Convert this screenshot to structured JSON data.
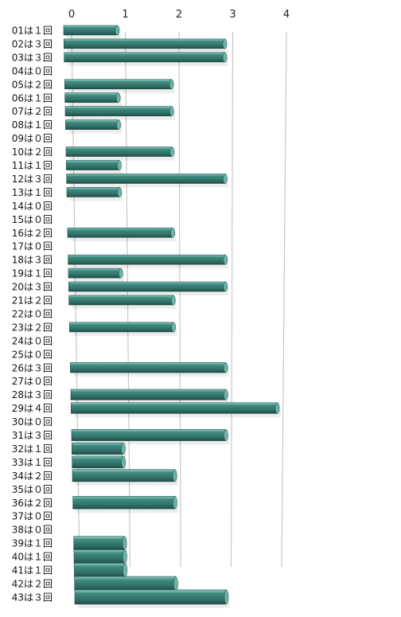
{
  "chart_data": {
    "type": "bar",
    "orientation": "horizontal",
    "x_ticks": [
      "0",
      "1",
      "2",
      "3",
      "4"
    ],
    "xlim": [
      0,
      4
    ],
    "grid": true,
    "bar_color": "#3f8a7f",
    "categories": [
      "01は１回",
      "02は３回",
      "03は３回",
      "04は０回",
      "05は２回",
      "06は１回",
      "07は２回",
      "08は１回",
      "09は０回",
      "10は２回",
      "11は１回",
      "12は３回",
      "13は１回",
      "14は０回",
      "15は０回",
      "16は２回",
      "17は０回",
      "18は３回",
      "19は１回",
      "20は３回",
      "21は２回",
      "22は０回",
      "23は２回",
      "24は０回",
      "25は０回",
      "26は３回",
      "27は０回",
      "28は３回",
      "29は４回",
      "30は０回",
      "31は３回",
      "32は１回",
      "33は１回",
      "34は２回",
      "35は０回",
      "36は２回",
      "37は０回",
      "38は０回",
      "39は１回",
      "40は１回",
      "41は１回",
      "42は２回",
      "43は３回"
    ],
    "values": [
      1,
      3,
      3,
      0,
      2,
      1,
      2,
      1,
      0,
      2,
      1,
      3,
      1,
      0,
      0,
      2,
      0,
      3,
      1,
      3,
      2,
      0,
      2,
      0,
      0,
      3,
      0,
      3,
      4,
      0,
      3,
      1,
      1,
      2,
      0,
      2,
      0,
      0,
      1,
      1,
      1,
      2,
      3
    ]
  }
}
